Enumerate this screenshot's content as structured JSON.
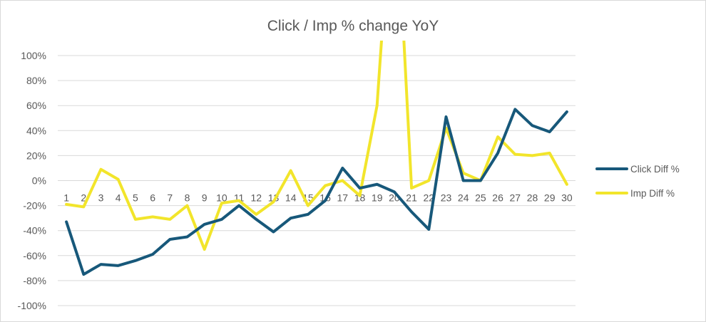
{
  "chart_data": {
    "type": "line",
    "title": "Click / Imp % change YoY",
    "xlabel": "",
    "ylabel": "",
    "categories": [
      "1",
      "2",
      "3",
      "4",
      "5",
      "6",
      "7",
      "8",
      "9",
      "10",
      "11",
      "12",
      "13",
      "14",
      "15",
      "16",
      "17",
      "18",
      "19",
      "20",
      "21",
      "22",
      "23",
      "24",
      "25",
      "26",
      "27",
      "28",
      "29",
      "30"
    ],
    "ylim": [
      -100,
      100
    ],
    "y_ticks": [
      100,
      80,
      60,
      40,
      20,
      0,
      -20,
      -40,
      -60,
      -80,
      -100
    ],
    "y_tick_labels": [
      "100%",
      "80%",
      "60%",
      "40%",
      "20%",
      "0%",
      "-20%",
      "-40%",
      "-60%",
      "-80%",
      "-100%"
    ],
    "grid": true,
    "legend_position": "right",
    "series": [
      {
        "name": "Click Diff %",
        "color": "#17587a",
        "values": [
          -33,
          -75,
          -67,
          -68,
          -64,
          -59,
          -47,
          -45,
          -35,
          -31,
          -20,
          -31,
          -41,
          -30,
          -27,
          -16,
          10,
          -6,
          -3,
          -9,
          -25,
          -39,
          51,
          0,
          0,
          22,
          57,
          44,
          39,
          55
        ]
      },
      {
        "name": "Imp Diff %",
        "color": "#f2e52b",
        "values": [
          -19,
          -21,
          9,
          1,
          -31,
          -29,
          -31,
          -20,
          -55,
          -18,
          -16,
          -27,
          -17,
          8,
          -20,
          -4,
          0,
          -12,
          60,
          260,
          -6,
          0,
          42,
          6,
          0,
          35,
          21,
          20,
          22,
          -3
        ]
      }
    ]
  }
}
